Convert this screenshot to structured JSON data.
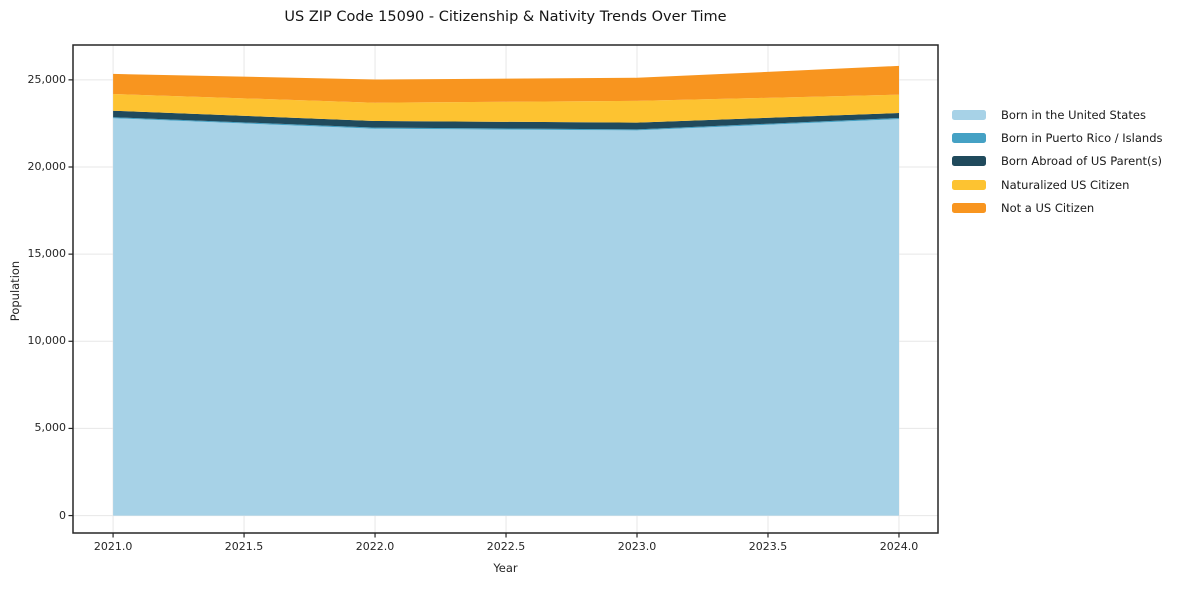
{
  "figure": {
    "title": "US ZIP Code 15090 - Citizenship & Nativity Trends Over Time",
    "background_color": "#ffffff",
    "text_color": "#262626",
    "spine_color": "#262626",
    "grid_color": "#e7e7e7"
  },
  "chart_data": {
    "type": "area",
    "stacked": true,
    "title": "US ZIP Code 15090 - Citizenship & Nativity Trends Over Time",
    "xlabel": "Year",
    "ylabel": "Population",
    "x": [
      2021,
      2022,
      2023,
      2024
    ],
    "series": [
      {
        "name": "Born in the United States",
        "color": "#A7D2E7",
        "values": [
          22800,
          22200,
          22100,
          22750
        ]
      },
      {
        "name": "Born in Puerto Rico / Islands",
        "color": "#45A1C4",
        "values": [
          60,
          60,
          60,
          60
        ]
      },
      {
        "name": "Born Abroad of US Parent(s)",
        "color": "#204A5C",
        "values": [
          370,
          380,
          390,
          290
        ]
      },
      {
        "name": "Naturalized US Citizen",
        "color": "#FDC331",
        "values": [
          960,
          1050,
          1240,
          1050
        ]
      },
      {
        "name": "Not a US Citizen",
        "color": "#F8951F",
        "values": [
          1150,
          1330,
          1330,
          1650
        ]
      }
    ],
    "totals": [
      25340,
      25020,
      25120,
      25800
    ],
    "xlim": [
      2020.847,
      2024.149
    ],
    "ylim": [
      -1000,
      27000
    ],
    "xticks": {
      "values": [
        2021.0,
        2021.5,
        2022.0,
        2022.5,
        2023.0,
        2023.5,
        2024.0
      ],
      "labels": [
        "2021.0",
        "2021.5",
        "2022.0",
        "2022.5",
        "2023.0",
        "2023.5",
        "2024.0"
      ]
    },
    "yticks": {
      "values": [
        0,
        5000,
        10000,
        15000,
        20000,
        25000
      ],
      "labels": [
        "0",
        "5,000",
        "10,000",
        "15,000",
        "20,000",
        "25,000"
      ]
    },
    "grid": true,
    "legend_position": "right"
  }
}
